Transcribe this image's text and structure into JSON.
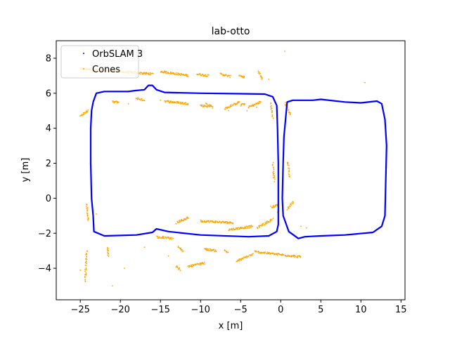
{
  "chart_data": {
    "type": "scatter",
    "title": "lab-otto",
    "xlabel": "x [m]",
    "ylabel": "y [m]",
    "xlim": [
      -28,
      15.5
    ],
    "ylim": [
      -5.8,
      9.0
    ],
    "xticks": [
      -25,
      -20,
      -15,
      -10,
      -5,
      0,
      5,
      10,
      15
    ],
    "yticks": [
      -4,
      -2,
      0,
      2,
      4,
      6,
      8
    ],
    "grid": false,
    "legend": "top-left",
    "series": [
      {
        "name": "OrbSLAM 3",
        "color": "#0000ff",
        "marker": "point",
        "path": [
          [
            -23.4,
            5.5
          ],
          [
            -23.0,
            6.0
          ],
          [
            -22.0,
            6.1
          ],
          [
            -19.0,
            6.1
          ],
          [
            -18.2,
            6.15
          ],
          [
            -17.0,
            6.2
          ],
          [
            -16.5,
            6.45
          ],
          [
            -16.0,
            6.45
          ],
          [
            -15.5,
            6.2
          ],
          [
            -14.5,
            6.05
          ],
          [
            -10.0,
            6.0
          ],
          [
            -5.0,
            5.97
          ],
          [
            -2.0,
            5.95
          ],
          [
            -1.0,
            5.8
          ],
          [
            -0.5,
            5.3
          ],
          [
            -0.4,
            4.0
          ],
          [
            -0.3,
            2.0
          ],
          [
            -0.3,
            0.0
          ],
          [
            -0.3,
            -1.5
          ],
          [
            -0.5,
            -1.9
          ],
          [
            -1.5,
            -2.15
          ],
          [
            -4.0,
            -2.2
          ],
          [
            -10.0,
            -2.1
          ],
          [
            -14.0,
            -1.9
          ],
          [
            -15.5,
            -1.75
          ],
          [
            -16.0,
            -1.95
          ],
          [
            -18.0,
            -2.1
          ],
          [
            -22.0,
            -2.15
          ],
          [
            -23.3,
            -1.9
          ],
          [
            -23.4,
            -1.0
          ],
          [
            -23.6,
            0.0
          ],
          [
            -23.7,
            2.0
          ],
          [
            -23.7,
            4.0
          ],
          [
            -23.6,
            5.0
          ],
          [
            -23.4,
            5.5
          ]
        ],
        "path2": [
          [
            0.6,
            4.5
          ],
          [
            0.8,
            5.5
          ],
          [
            1.5,
            5.6
          ],
          [
            4.0,
            5.6
          ],
          [
            5.0,
            5.65
          ],
          [
            8.0,
            5.5
          ],
          [
            10.0,
            5.45
          ],
          [
            12.0,
            5.55
          ],
          [
            12.6,
            5.4
          ],
          [
            13.0,
            4.5
          ],
          [
            13.2,
            3.0
          ],
          [
            13.1,
            1.0
          ],
          [
            13.0,
            -1.0
          ],
          [
            12.6,
            -1.6
          ],
          [
            11.5,
            -1.95
          ],
          [
            8.0,
            -2.1
          ],
          [
            5.0,
            -2.15
          ],
          [
            3.0,
            -2.2
          ],
          [
            2.2,
            -2.3
          ],
          [
            1.0,
            -1.9
          ],
          [
            0.3,
            -1.0
          ],
          [
            0.2,
            0.0
          ],
          [
            0.3,
            2.0
          ],
          [
            0.4,
            3.5
          ],
          [
            0.6,
            4.5
          ]
        ]
      },
      {
        "name": "Cones",
        "color": "#ffa500",
        "marker": "point",
        "segments": [
          [
            [
              -25.0,
              7.4
            ],
            [
              -16.0,
              7.1
            ]
          ],
          [
            [
              -15.0,
              7.25
            ],
            [
              -11.5,
              7.0
            ]
          ],
          [
            [
              -10.5,
              7.1
            ],
            [
              -9.0,
              7.0
            ]
          ],
          [
            [
              -7.5,
              7.1
            ],
            [
              -6.3,
              6.95
            ]
          ],
          [
            [
              -5.2,
              7.05
            ],
            [
              -4.5,
              6.9
            ]
          ],
          [
            [
              -2.8,
              7.2
            ],
            [
              -2.3,
              6.8
            ]
          ],
          [
            [
              -21.0,
              5.5
            ],
            [
              -20.2,
              5.5
            ]
          ],
          [
            [
              -18.0,
              5.7
            ],
            [
              -17.0,
              5.6
            ]
          ],
          [
            [
              -14.5,
              5.55
            ],
            [
              -11.5,
              5.4
            ]
          ],
          [
            [
              -10.0,
              5.3
            ],
            [
              -9.0,
              5.25
            ]
          ],
          [
            [
              -9.3,
              5.4
            ],
            [
              -8.5,
              5.2
            ]
          ],
          [
            [
              -7.0,
              5.1
            ],
            [
              -5.2,
              5.5
            ]
          ],
          [
            [
              -5.0,
              5.3
            ],
            [
              -4.5,
              5.4
            ]
          ],
          [
            [
              -4.0,
              5.2
            ],
            [
              -2.5,
              5.5
            ]
          ],
          [
            [
              -25.0,
              4.7
            ],
            [
              -24.0,
              5.0
            ]
          ],
          [
            [
              -1.2,
              5.4
            ],
            [
              -1.0,
              4.6
            ]
          ],
          [
            [
              0.5,
              5.4
            ],
            [
              1.2,
              4.8
            ]
          ],
          [
            [
              -1.0,
              2.0
            ],
            [
              -0.8,
              1.0
            ]
          ],
          [
            [
              0.9,
              2.1
            ],
            [
              1.1,
              1.2
            ]
          ],
          [
            [
              -1.2,
              -0.5
            ],
            [
              -0.4,
              -0.4
            ]
          ],
          [
            [
              0.8,
              -0.6
            ],
            [
              1.6,
              -0.2
            ]
          ],
          [
            [
              -24.2,
              -0.3
            ],
            [
              -24.0,
              -1.3
            ]
          ],
          [
            [
              -13.0,
              -1.4
            ],
            [
              -11.5,
              -1.1
            ]
          ],
          [
            [
              -10.0,
              -1.3
            ],
            [
              -6.0,
              -1.4
            ]
          ],
          [
            [
              -6.5,
              -1.8
            ],
            [
              -3.5,
              -1.6
            ]
          ],
          [
            [
              -3.0,
              -1.7
            ],
            [
              -1.0,
              -1.2
            ]
          ],
          [
            [
              -12.8,
              -2.8
            ],
            [
              -12.2,
              -3.0
            ]
          ],
          [
            [
              -9.5,
              -2.9
            ],
            [
              -8.0,
              -3.0
            ]
          ],
          [
            [
              -7.0,
              -3.0
            ],
            [
              -6.5,
              -3.1
            ]
          ],
          [
            [
              -5.5,
              -3.6
            ],
            [
              -3.5,
              -3.2
            ]
          ],
          [
            [
              -3.2,
              -3.05
            ],
            [
              -0.5,
              -3.2
            ]
          ],
          [
            [
              -0.5,
              -3.2
            ],
            [
              2.5,
              -3.35
            ]
          ],
          [
            [
              -11.5,
              -3.9
            ],
            [
              -9.5,
              -3.7
            ]
          ],
          [
            [
              -13.0,
              -3.9
            ],
            [
              -12.5,
              -4.1
            ]
          ],
          [
            [
              -24.2,
              -3.0
            ],
            [
              -24.4,
              -4.8
            ]
          ],
          [
            [
              -21.6,
              -2.8
            ],
            [
              -21.5,
              -3.3
            ]
          ],
          [
            [
              -15.5,
              -2.2
            ],
            [
              -13.5,
              -2.3
            ]
          ]
        ],
        "points": [
          [
            -3.0,
            5.2
          ],
          [
            -4.2,
            5.0
          ],
          [
            -19.0,
            5.4
          ],
          [
            -15.0,
            5.6
          ],
          [
            0.5,
            8.4
          ],
          [
            10.5,
            6.6
          ],
          [
            -1.5,
            6.8
          ],
          [
            -6.5,
            5.0
          ],
          [
            2.5,
            -1.6
          ],
          [
            3.2,
            -1.7
          ],
          [
            -25.0,
            -4.1
          ],
          [
            -19.5,
            -4.0
          ],
          [
            -21.0,
            -5.0
          ],
          [
            -14.0,
            -3.3
          ],
          [
            -17.0,
            -2.8
          ],
          [
            -23.0,
            -0.9
          ],
          [
            -21.5,
            -3.0
          ],
          [
            -0.4,
            -0.8
          ]
        ]
      }
    ]
  }
}
